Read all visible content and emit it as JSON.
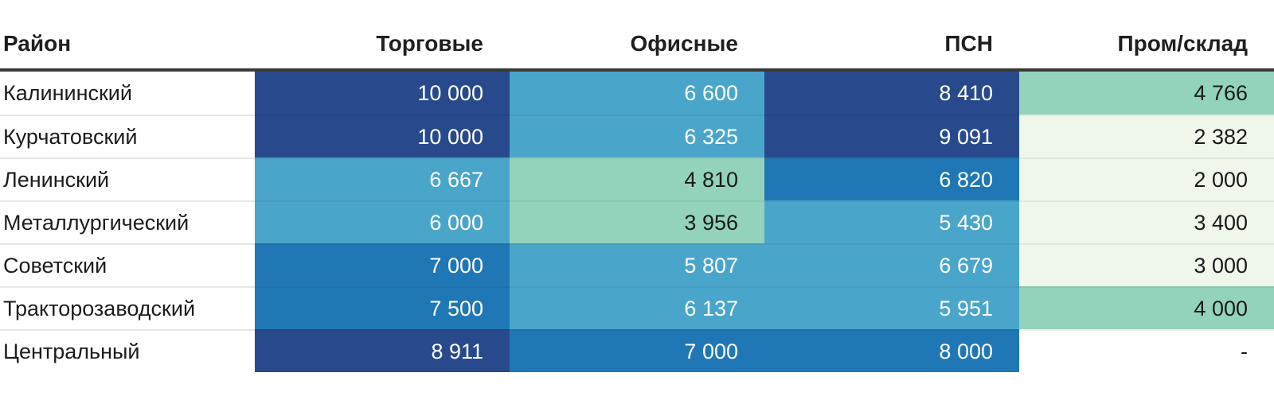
{
  "colors": {
    "navy": "#284A8D",
    "blue": "#2077B5",
    "teal": "#4AA5CB",
    "green": "#93D3BB",
    "pale": "#EEF7EA",
    "white": "#FFFFFF",
    "header_border": "#3A3A3A",
    "text_dark": "#1A1A1A",
    "text_light": "#FFFFFF"
  },
  "table": {
    "columns": [
      {
        "label": "Район"
      },
      {
        "label": "Торговые"
      },
      {
        "label": "Офисные"
      },
      {
        "label": "ПСН"
      },
      {
        "label": "Пром/склад"
      }
    ],
    "rows": [
      {
        "district": "Калининский",
        "cells": [
          {
            "text": "10 000",
            "level": "navy",
            "text_color": "light"
          },
          {
            "text": "6 600",
            "level": "teal",
            "text_color": "light"
          },
          {
            "text": "8 410",
            "level": "navy",
            "text_color": "light"
          },
          {
            "text": "4 766",
            "level": "green",
            "text_color": "dark"
          }
        ]
      },
      {
        "district": "Курчатовский",
        "cells": [
          {
            "text": "10 000",
            "level": "navy",
            "text_color": "light"
          },
          {
            "text": "6 325",
            "level": "teal",
            "text_color": "light"
          },
          {
            "text": "9 091",
            "level": "navy",
            "text_color": "light"
          },
          {
            "text": "2 382",
            "level": "pale",
            "text_color": "dark"
          }
        ]
      },
      {
        "district": "Ленинский",
        "cells": [
          {
            "text": "6 667",
            "level": "teal",
            "text_color": "light"
          },
          {
            "text": "4 810",
            "level": "green",
            "text_color": "dark"
          },
          {
            "text": "6 820",
            "level": "blue",
            "text_color": "light"
          },
          {
            "text": "2 000",
            "level": "pale",
            "text_color": "dark"
          }
        ]
      },
      {
        "district": "Металлургический",
        "cells": [
          {
            "text": "6 000",
            "level": "teal",
            "text_color": "light"
          },
          {
            "text": "3 956",
            "level": "green",
            "text_color": "dark"
          },
          {
            "text": "5 430",
            "level": "teal",
            "text_color": "light"
          },
          {
            "text": "3 400",
            "level": "pale",
            "text_color": "dark"
          }
        ]
      },
      {
        "district": "Советский",
        "cells": [
          {
            "text": "7 000",
            "level": "blue",
            "text_color": "light"
          },
          {
            "text": "5 807",
            "level": "teal",
            "text_color": "light"
          },
          {
            "text": "6 679",
            "level": "teal",
            "text_color": "light"
          },
          {
            "text": "3 000",
            "level": "pale",
            "text_color": "dark"
          }
        ]
      },
      {
        "district": "Тракторозаводский",
        "cells": [
          {
            "text": "7 500",
            "level": "blue",
            "text_color": "light"
          },
          {
            "text": "6 137",
            "level": "teal",
            "text_color": "light"
          },
          {
            "text": "5 951",
            "level": "teal",
            "text_color": "light"
          },
          {
            "text": "4 000",
            "level": "green",
            "text_color": "dark"
          }
        ]
      },
      {
        "district": "Центральный",
        "cells": [
          {
            "text": "8 911",
            "level": "navy",
            "text_color": "light"
          },
          {
            "text": "7 000",
            "level": "blue",
            "text_color": "light"
          },
          {
            "text": "8 000",
            "level": "blue",
            "text_color": "light"
          },
          {
            "text": "-",
            "level": "white",
            "text_color": "dark"
          }
        ]
      }
    ]
  },
  "chart_data": {
    "type": "heatmap",
    "title": "",
    "columns": [
      "Торговые",
      "Офисные",
      "ПСН",
      "Пром/склад"
    ],
    "rows": [
      "Калининский",
      "Курчатовский",
      "Ленинский",
      "Металлургический",
      "Советский",
      "Тракторозаводский",
      "Центральный"
    ],
    "values": [
      [
        10000,
        6600,
        8410,
        4766
      ],
      [
        10000,
        6325,
        9091,
        2382
      ],
      [
        6667,
        4810,
        6820,
        2000
      ],
      [
        6000,
        3956,
        5430,
        3400
      ],
      [
        7000,
        5807,
        6679,
        3000
      ],
      [
        7500,
        6137,
        5951,
        4000
      ],
      [
        8911,
        7000,
        8000,
        null
      ]
    ],
    "color_scale_low_to_high": [
      "#EEF7EA",
      "#93D3BB",
      "#4AA5CB",
      "#2077B5",
      "#284A8D"
    ],
    "legend_position": "none",
    "grid": false
  }
}
